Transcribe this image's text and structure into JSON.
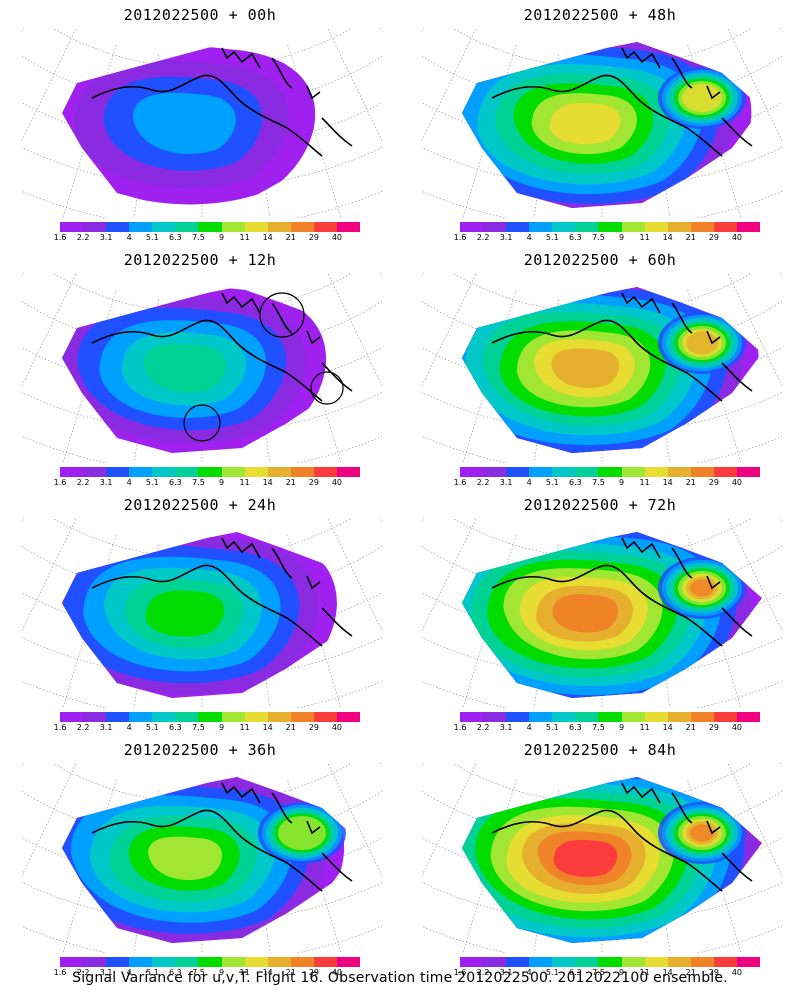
{
  "caption": "Signal Variance for u,v,T. Flight 16. Observation time 2012022500. 2012022100 ensemble.",
  "colorbar": {
    "ticks": [
      "1.6",
      "2.2",
      "3.1",
      "4",
      "5.1",
      "6.3",
      "7.5",
      "9",
      "11",
      "14",
      "21",
      "29",
      "40"
    ],
    "colors": [
      "#a020f0",
      "#8a2be2",
      "#2050ff",
      "#00a0ff",
      "#00c8c8",
      "#00d296",
      "#00dc00",
      "#a0e632",
      "#e6dc32",
      "#e6af2d",
      "#f08228",
      "#fa3c3c",
      "#f00082"
    ]
  },
  "panels": [
    {
      "title": "2012022500 + 00h",
      "level": 0.15,
      "circles": false
    },
    {
      "title": "2012022500 + 48h",
      "level": 0.65,
      "circles": false
    },
    {
      "title": "2012022500 + 12h",
      "level": 0.3,
      "circles": true
    },
    {
      "title": "2012022500 + 60h",
      "level": 0.75,
      "circles": false
    },
    {
      "title": "2012022500 + 24h",
      "level": 0.45,
      "circles": false
    },
    {
      "title": "2012022500 + 72h",
      "level": 0.85,
      "circles": false
    },
    {
      "title": "2012022500 + 36h",
      "level": 0.55,
      "circles": false
    },
    {
      "title": "2012022500 + 84h",
      "level": 0.95,
      "circles": false
    }
  ]
}
